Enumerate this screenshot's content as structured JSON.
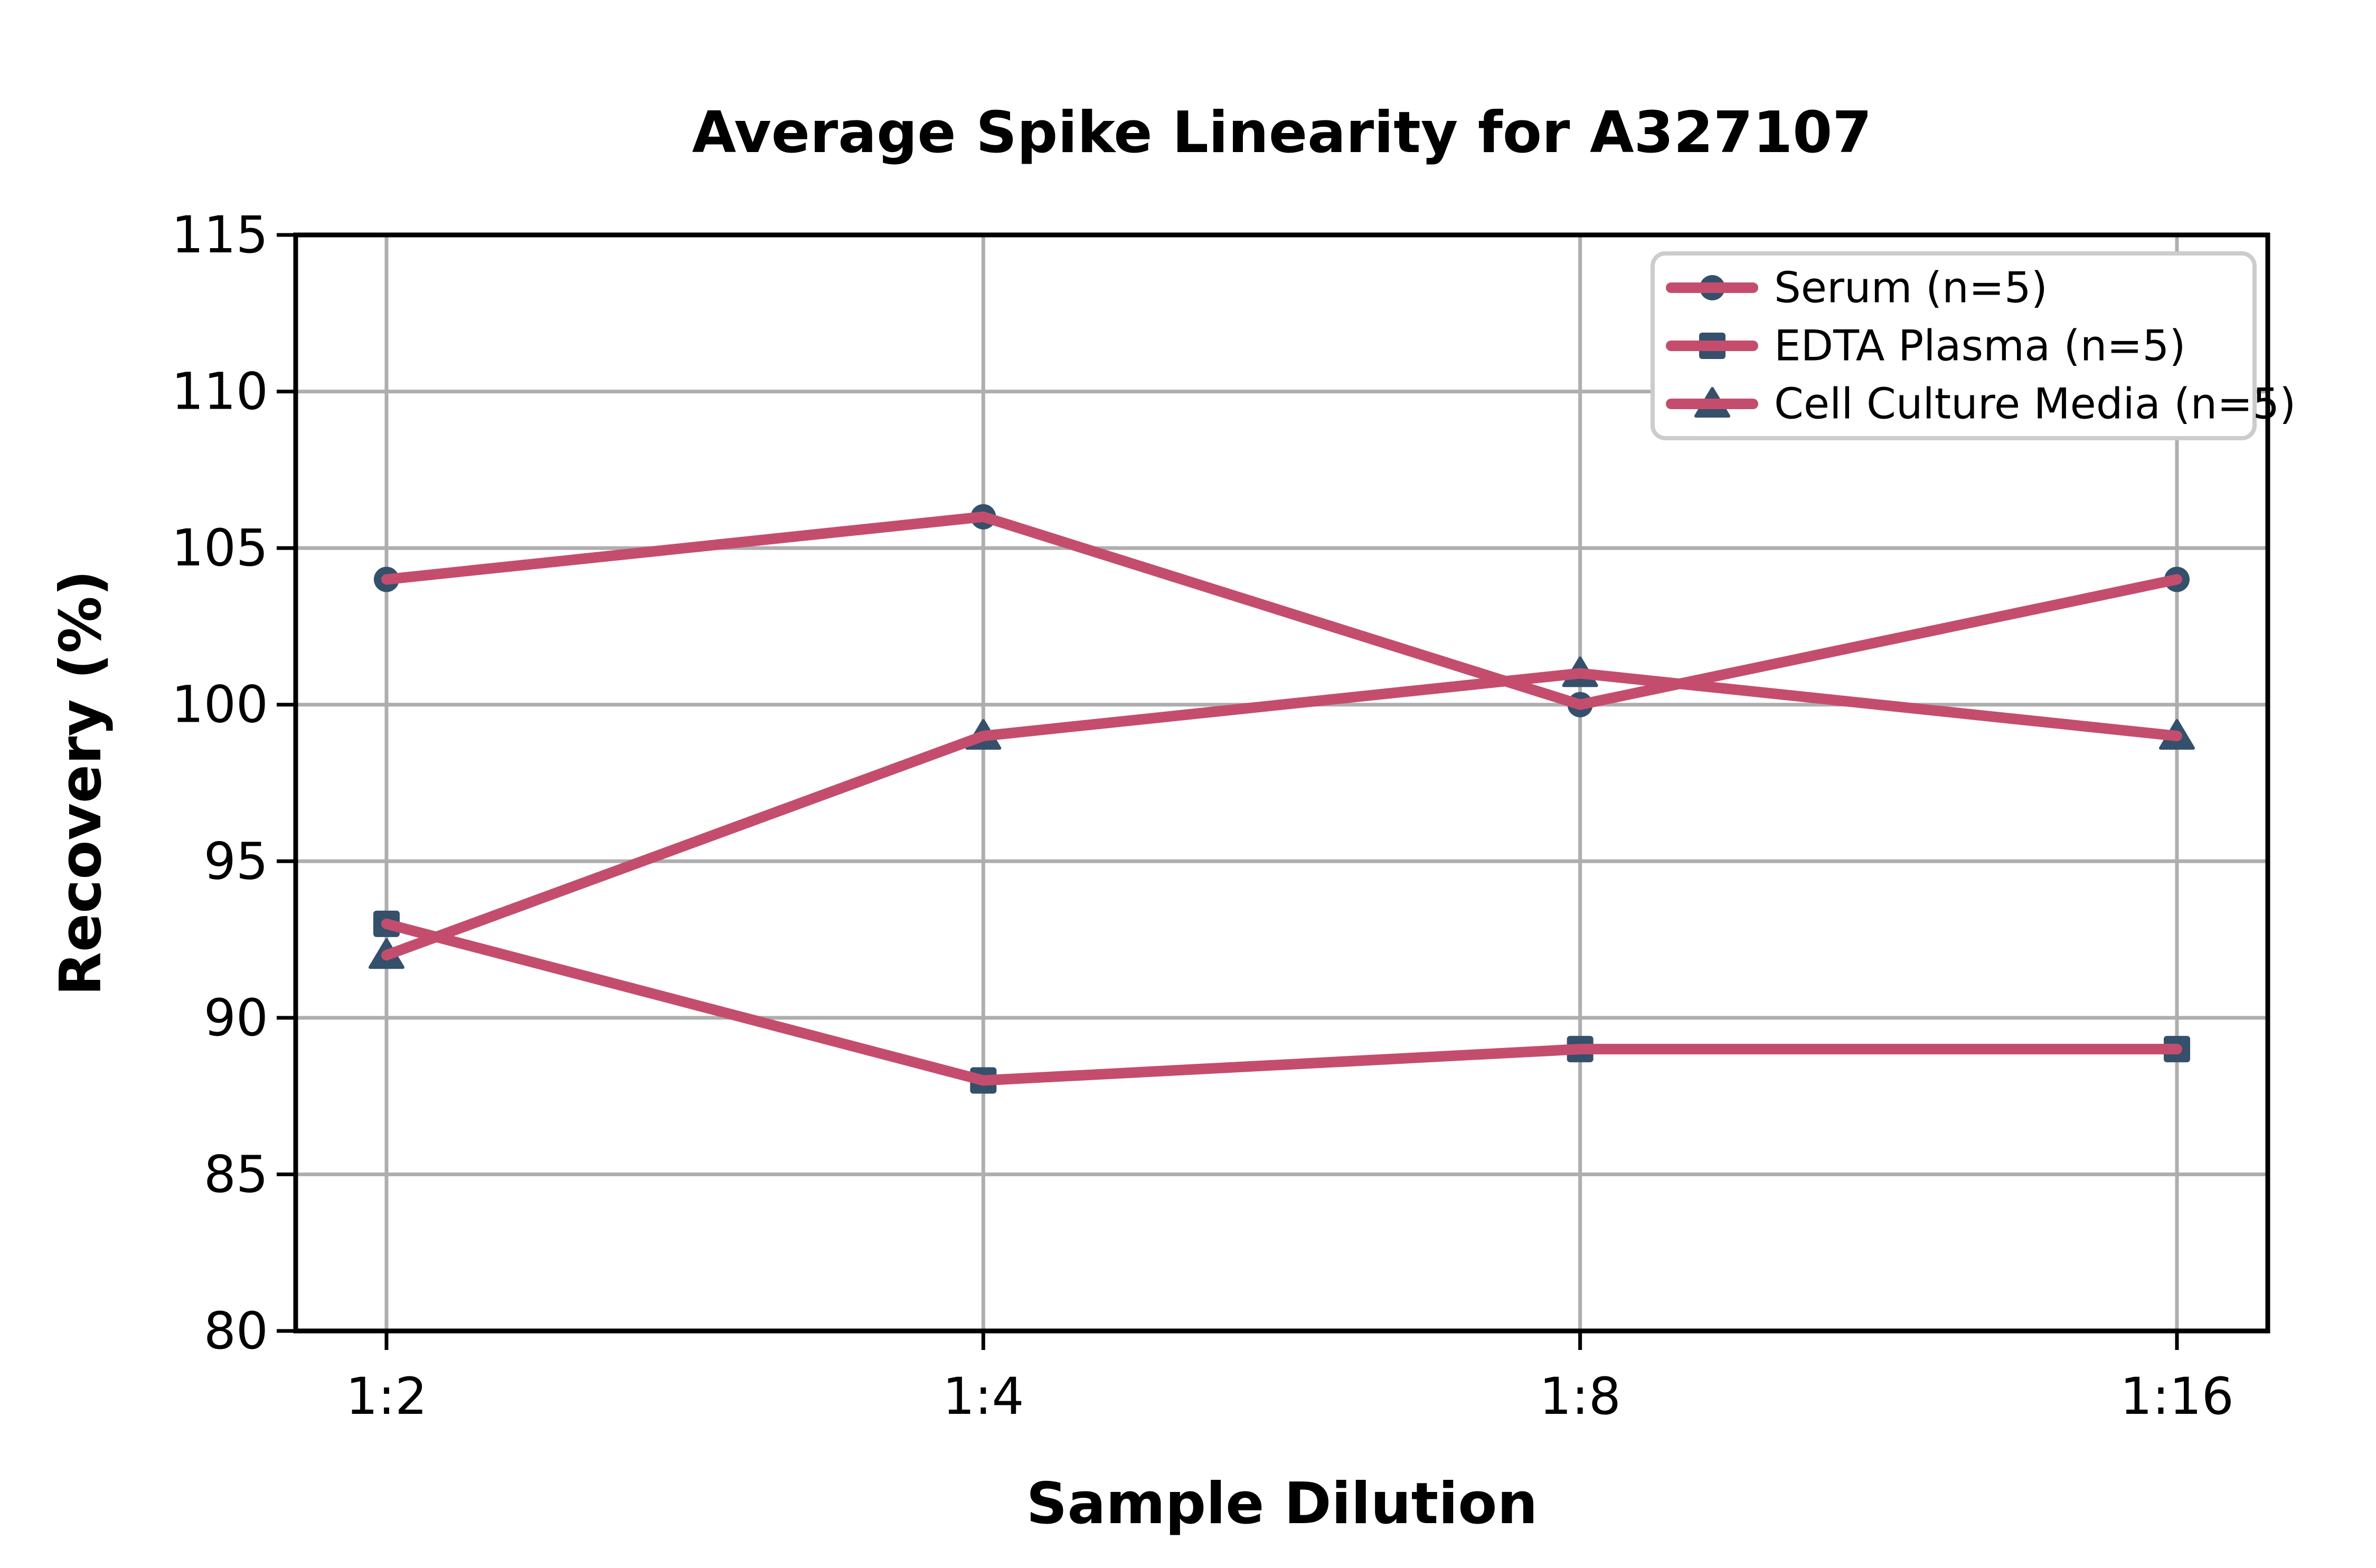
{
  "chart_data": {
    "type": "line",
    "title": "Average Spike Linearity for A327107",
    "xlabel": "Sample Dilution",
    "ylabel": "Recovery (%)",
    "categories": [
      "1:2",
      "1:4",
      "1:8",
      "1:16"
    ],
    "series": [
      {
        "name": "Serum (n=5)",
        "marker": "circle",
        "values": [
          104,
          106,
          100,
          104
        ]
      },
      {
        "name": "EDTA Plasma (n=5)",
        "marker": "square",
        "values": [
          93,
          88,
          89,
          89
        ]
      },
      {
        "name": "Cell Culture Media (n=5)",
        "marker": "triangle",
        "values": [
          92,
          99,
          101,
          99
        ]
      }
    ],
    "ylim": [
      80,
      115
    ],
    "yticks": [
      80,
      85,
      90,
      95,
      100,
      105,
      110,
      115
    ],
    "grid": true,
    "legend_position": "upper right",
    "colors": {
      "line": "#C44D6E",
      "marker": "#34506B",
      "grid": "#AEAEAE",
      "axis": "#000000",
      "text": "#000000",
      "legend_border": "#CCCCCC",
      "background": "#FFFFFF"
    }
  }
}
